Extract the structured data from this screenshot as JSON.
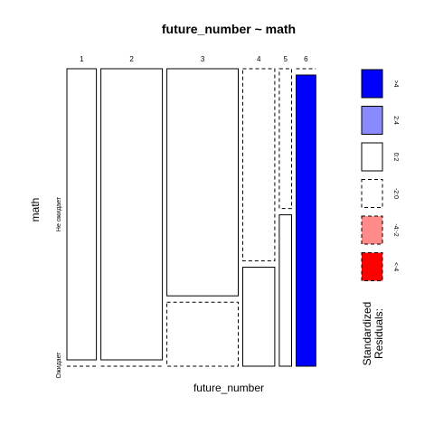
{
  "chart_data": {
    "type": "mosaic",
    "title": "future_number ~ math",
    "xlabel": "future_number",
    "ylabel": "math",
    "column_labels": [
      "1",
      "2",
      "3",
      "4",
      "5",
      "6"
    ],
    "column_proportions": [
      0.12,
      0.25,
      0.29,
      0.13,
      0.05,
      0.08
    ],
    "row_labels": [
      "Не ожидает",
      "Ожидает"
    ],
    "cells": [
      {
        "column": "1",
        "row": "Не ожидает",
        "proportion": 1.0,
        "residual_band": "0:2"
      },
      {
        "column": "1",
        "row": "Ожидает",
        "proportion": 0.0,
        "residual_band": "-2:0"
      },
      {
        "column": "2",
        "row": "Не ожидает",
        "proportion": 1.0,
        "residual_band": "0:2"
      },
      {
        "column": "2",
        "row": "Ожидает",
        "proportion": 0.0,
        "residual_band": "-2:0"
      },
      {
        "column": "3",
        "row": "Не ожидает",
        "proportion": 0.78,
        "residual_band": "0:2"
      },
      {
        "column": "3",
        "row": "Ожидает",
        "proportion": 0.22,
        "residual_band": "-2:0"
      },
      {
        "column": "4",
        "row": "Не ожидает",
        "proportion": 0.66,
        "residual_band": "-2:0"
      },
      {
        "column": "4",
        "row": "Ожидает",
        "proportion": 0.34,
        "residual_band": "0:2"
      },
      {
        "column": "5",
        "row": "Не ожидает",
        "proportion": 0.48,
        "residual_band": "-2:0"
      },
      {
        "column": "5",
        "row": "Ожидает",
        "proportion": 0.52,
        "residual_band": "0:2"
      },
      {
        "column": "6",
        "row": "Не ожидает",
        "proportion": 0.0,
        "residual_band": "-2:0"
      },
      {
        "column": "6",
        "row": "Ожидает",
        "proportion": 1.0,
        "residual_band": ">4"
      }
    ],
    "legend": {
      "title": "Standardized Residuals:",
      "entries": [
        {
          "label": ">4",
          "color": "#0000ff",
          "dashed": false
        },
        {
          "label": "2:4",
          "color": "#8a8aff",
          "dashed": false
        },
        {
          "label": "0:2",
          "color": "#ffffff",
          "dashed": false
        },
        {
          "label": "-2:0",
          "color": "#ffffff",
          "dashed": true
        },
        {
          "label": "-4:-2",
          "color": "#ff8a8a",
          "dashed": true
        },
        {
          "label": "<-4",
          "color": "#ff0000",
          "dashed": true
        }
      ]
    }
  }
}
